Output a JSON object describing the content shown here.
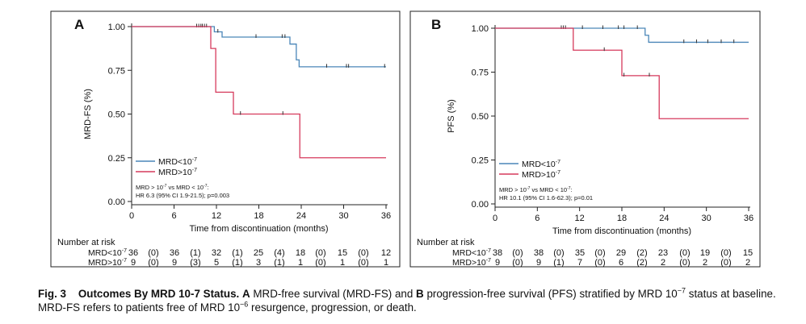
{
  "figure": {
    "panels": [
      {
        "letter": "A",
        "ylabel": "MRD-FS (%)",
        "legend": [
          {
            "pre": "MRD<10",
            "sup": "-7"
          },
          {
            "pre": "MRD>10",
            "sup": "-7"
          }
        ],
        "annotation": {
          "line1_a": "MRD > 10",
          "line1_sup_a": "-7",
          "line1_b": " vs MRD < 10",
          "line1_sup_b": "-7",
          "line1_c": ":",
          "line2": "HR 6.3 (95% CI 1.9-21.5); p=0.003"
        },
        "risk_rows": [
          {
            "pre": "MRD<10",
            "sup": "-7",
            "values": [
              "36",
              "(0)",
              "36",
              "(1)",
              "32",
              "(1)",
              "25",
              "(4)",
              "18",
              "(0)",
              "15",
              "(0)",
              "12"
            ]
          },
          {
            "pre": "MRD>10",
            "sup": "-7",
            "values": [
              "9",
              "(0)",
              "9",
              "(3)",
              "5",
              "(1)",
              "3",
              "(1)",
              "1",
              "(0)",
              "1",
              "(0)",
              "1"
            ]
          }
        ]
      },
      {
        "letter": "B",
        "ylabel": "PFS (%)",
        "legend": [
          {
            "pre": "MRD<10",
            "sup": "-7"
          },
          {
            "pre": "MRD>10",
            "sup": "-7"
          }
        ],
        "annotation": {
          "line1_a": "MRD > 10",
          "line1_sup_a": "-7",
          "line1_b": " vs MRD < 10",
          "line1_sup_b": "-7",
          "line1_c": ":",
          "line2": "HR 10.1 (95% CI 1.6-62.3); p=0.01"
        },
        "risk_rows": [
          {
            "pre": "MRD<10",
            "sup": "-7",
            "values": [
              "38",
              "(0)",
              "38",
              "(0)",
              "35",
              "(0)",
              "29",
              "(2)",
              "23",
              "(0)",
              "19",
              "(0)",
              "15"
            ]
          },
          {
            "pre": "MRD>10",
            "sup": "-7",
            "values": [
              "9",
              "(0)",
              "9",
              "(1)",
              "7",
              "(0)",
              "6",
              "(2)",
              "2",
              "(0)",
              "2",
              "(0)",
              "2"
            ]
          }
        ]
      }
    ],
    "risk_title": "Number at risk",
    "xlabel": "Time from discontinuation (months)"
  },
  "caption": {
    "label": "Fig. 3",
    "title": "Outcomes By MRD 10-7 Status.",
    "a_label": "A",
    "text1": " MRD-free survival (MRD-FS) and ",
    "b_label": "B",
    "text2": " progression-free survival (PFS) stratified by MRD 10",
    "sup1": "−7",
    "text3": " status at baseline. MRD-FS refers to patients free of MRD 10",
    "sup2": "−6",
    "text4": " resurgence, progression, or death."
  },
  "chart_data": [
    {
      "type": "line",
      "title": "",
      "xlabel": "Time from discontinuation (months)",
      "ylabel": "MRD-FS (%)",
      "xlim": [
        0,
        36
      ],
      "ylim": [
        0,
        1
      ],
      "xticks": [
        0,
        6,
        12,
        18,
        24,
        30,
        36
      ],
      "yticks": [
        0.0,
        0.25,
        0.5,
        0.75,
        1.0
      ],
      "ytick_labels": [
        "0.00",
        "0.25",
        "0.50",
        "0.75",
        "1.00"
      ],
      "grid": false,
      "legend_position": "bottom-left",
      "series": [
        {
          "name": "MRD<10-7",
          "color": "#4a86b8",
          "step_x": [
            0,
            11.7,
            12.3,
            12.8,
            22.0,
            22.4,
            23.3,
            23.7,
            36
          ],
          "step_y": [
            1.0,
            0.97,
            0.97,
            0.94,
            0.94,
            0.9,
            0.81,
            0.77,
            0.77
          ],
          "censor_x": [
            9.2,
            9.5,
            9.8,
            10.0,
            10.3,
            10.6,
            12.2,
            17.6,
            21.3,
            21.7,
            27.6,
            30.4,
            30.7,
            35.8
          ],
          "censor_y": [
            1.0,
            1.0,
            1.0,
            1.0,
            1.0,
            1.0,
            0.97,
            0.94,
            0.94,
            0.94,
            0.77,
            0.77,
            0.77,
            0.77
          ]
        },
        {
          "name": "MRD>10-7",
          "color": "#d63a5c",
          "step_x": [
            0,
            11.2,
            11.9,
            14.4,
            23.8,
            36
          ],
          "step_y": [
            1.0,
            0.875,
            0.625,
            0.5,
            0.25,
            0.25
          ],
          "censor_x": [
            15.4,
            21.4
          ],
          "censor_y": [
            0.5,
            0.5
          ]
        }
      ]
    },
    {
      "type": "line",
      "title": "",
      "xlabel": "Time from discontinuation (months)",
      "ylabel": "PFS (%)",
      "xlim": [
        0,
        36
      ],
      "ylim": [
        0,
        1
      ],
      "xticks": [
        0,
        6,
        12,
        18,
        24,
        30,
        36
      ],
      "yticks": [
        0.0,
        0.25,
        0.5,
        0.75,
        1.0
      ],
      "ytick_labels": [
        "0.00",
        "0.25",
        "0.50",
        "0.75",
        "1.00"
      ],
      "grid": false,
      "legend_position": "bottom-left",
      "series": [
        {
          "name": "MRD<10-7",
          "color": "#4a86b8",
          "step_x": [
            0,
            21.3,
            21.8,
            36
          ],
          "step_y": [
            1.0,
            0.96,
            0.92,
            0.92
          ],
          "censor_x": [
            9.4,
            9.7,
            10.0,
            12.4,
            15.3,
            17.5,
            18.3,
            20.2,
            26.8,
            28.6,
            30.2,
            32.1,
            33.9
          ],
          "censor_y": [
            1.0,
            1.0,
            1.0,
            1.0,
            1.0,
            1.0,
            1.0,
            1.0,
            0.92,
            0.92,
            0.92,
            0.92,
            0.92
          ]
        },
        {
          "name": "MRD>10-7",
          "color": "#d63a5c",
          "step_x": [
            0,
            11.1,
            18.0,
            23.3,
            36
          ],
          "step_y": [
            1.0,
            0.875,
            0.73,
            0.485,
            0.485
          ],
          "censor_x": [
            15.5,
            18.3,
            21.9
          ],
          "censor_y": [
            0.875,
            0.73,
            0.73
          ]
        }
      ]
    }
  ]
}
